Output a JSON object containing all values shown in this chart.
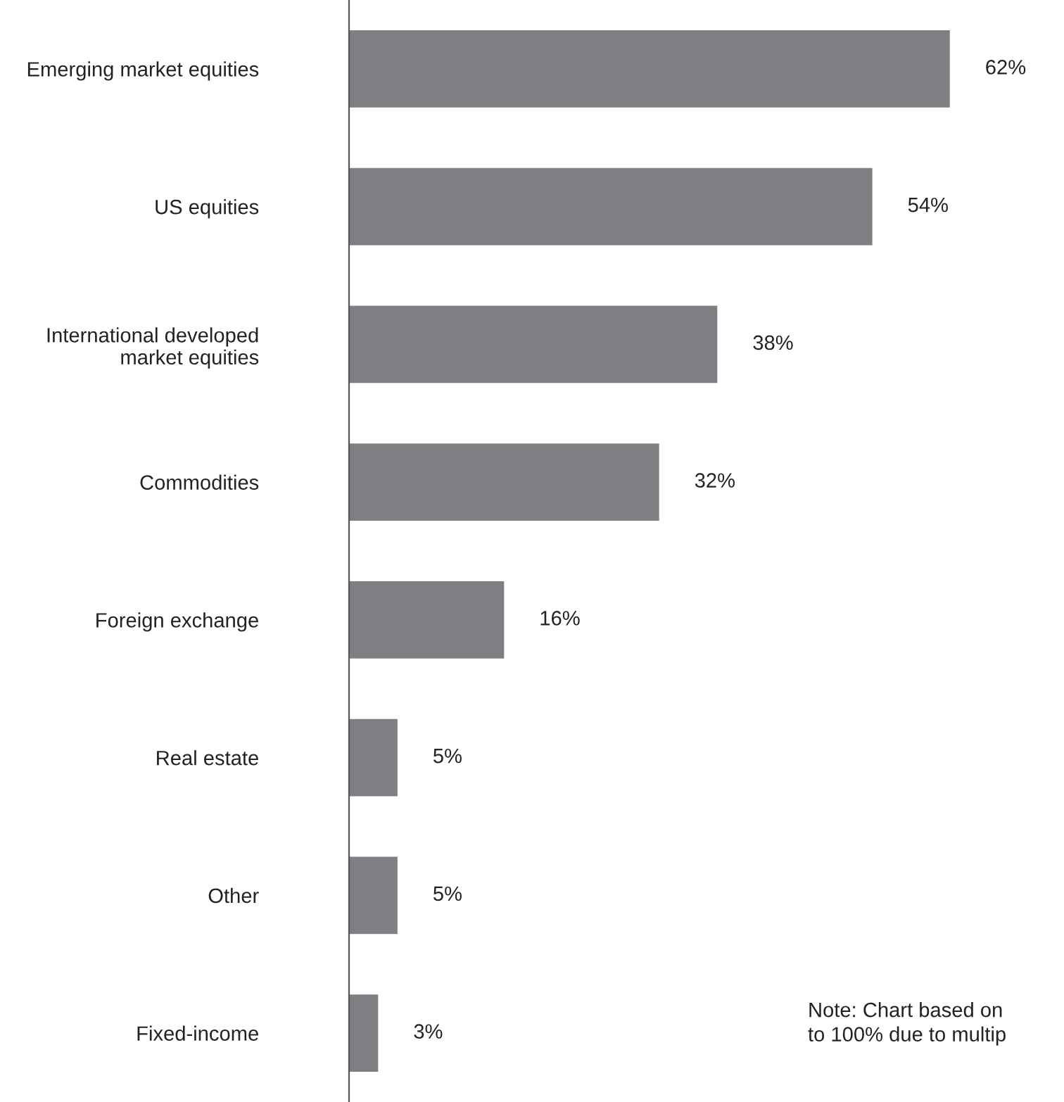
{
  "chart_data": {
    "type": "bar",
    "orientation": "horizontal",
    "categories": [
      "Emerging market equities",
      "US equities",
      "International developed\nmarket equities",
      "Commodities",
      "Foreign exchange",
      "Real estate",
      "Other",
      "Fixed-income"
    ],
    "values": [
      62,
      54,
      38,
      32,
      16,
      5,
      5,
      3
    ],
    "value_labels": [
      "62%",
      "54%",
      "38%",
      "32%",
      "16%",
      "5%",
      "5%",
      "3%"
    ],
    "color": "#7f7e83",
    "annotations": [
      "Note: Chart based on\nto 100% due to multip"
    ]
  }
}
